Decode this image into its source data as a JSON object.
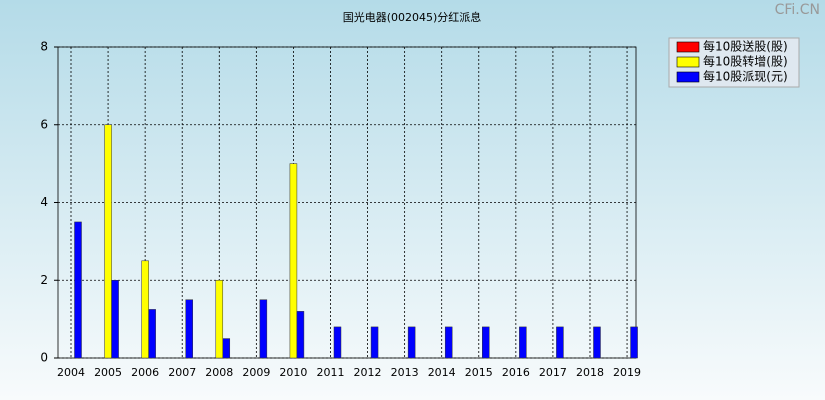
{
  "chart_data": {
    "type": "bar",
    "title": "国光电器(002045)分红派息",
    "watermark": "CFi.CN",
    "categories": [
      "2004",
      "2005",
      "2006",
      "2007",
      "2008",
      "2009",
      "2010",
      "2011",
      "2012",
      "2013",
      "2014",
      "2015",
      "2016",
      "2017",
      "2018",
      "2019"
    ],
    "series": [
      {
        "name": "每10股送股(股)",
        "color": "#ff0000",
        "values": [
          0,
          0,
          0,
          0,
          0,
          0,
          0,
          0,
          0,
          0,
          0,
          0,
          0,
          0,
          0,
          0
        ]
      },
      {
        "name": "每10股转增(股)",
        "color": "#ffff00",
        "values": [
          0,
          6,
          2.5,
          0,
          2,
          0,
          5,
          0,
          0,
          0,
          0,
          0,
          0,
          0,
          0,
          0
        ]
      },
      {
        "name": "每10股派现(元)",
        "color": "#0000ff",
        "values": [
          3.5,
          2,
          1.25,
          1.5,
          0.5,
          1.5,
          1.2,
          0.8,
          0.8,
          0.8,
          0.8,
          0.8,
          0.8,
          0.8,
          0.8,
          0.8
        ]
      }
    ],
    "ylim": [
      0,
      8
    ],
    "yticks": [
      0,
      2,
      4,
      6,
      8
    ],
    "grid": true,
    "legend": "top-right"
  }
}
